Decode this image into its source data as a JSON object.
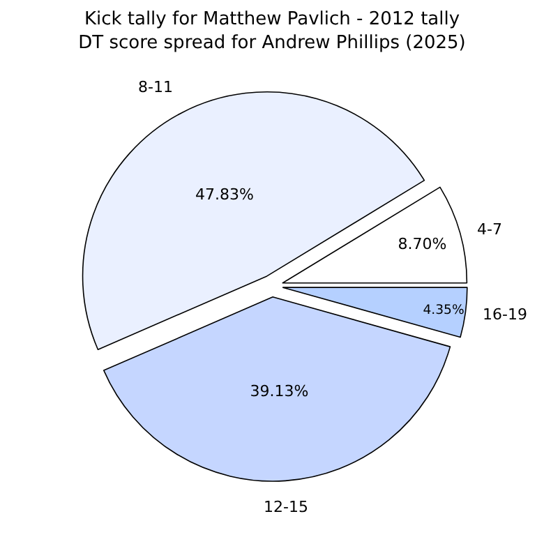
{
  "chart_data": {
    "type": "pie",
    "title": "Kick tally for Matthew Pavlich - 2012 tally\nDT score spread for Andrew Phillips (2025)",
    "categories": [
      "4-7",
      "8-11",
      "12-15",
      "16-19"
    ],
    "values": [
      8.7,
      47.83,
      39.13,
      4.35
    ],
    "value_labels": [
      "8.70%",
      "47.83%",
      "39.13%",
      "4.35%"
    ],
    "colors": [
      "#ffffff",
      "#eaf0ff",
      "#c5d6ff",
      "#b5d0ff"
    ],
    "legend": false
  }
}
